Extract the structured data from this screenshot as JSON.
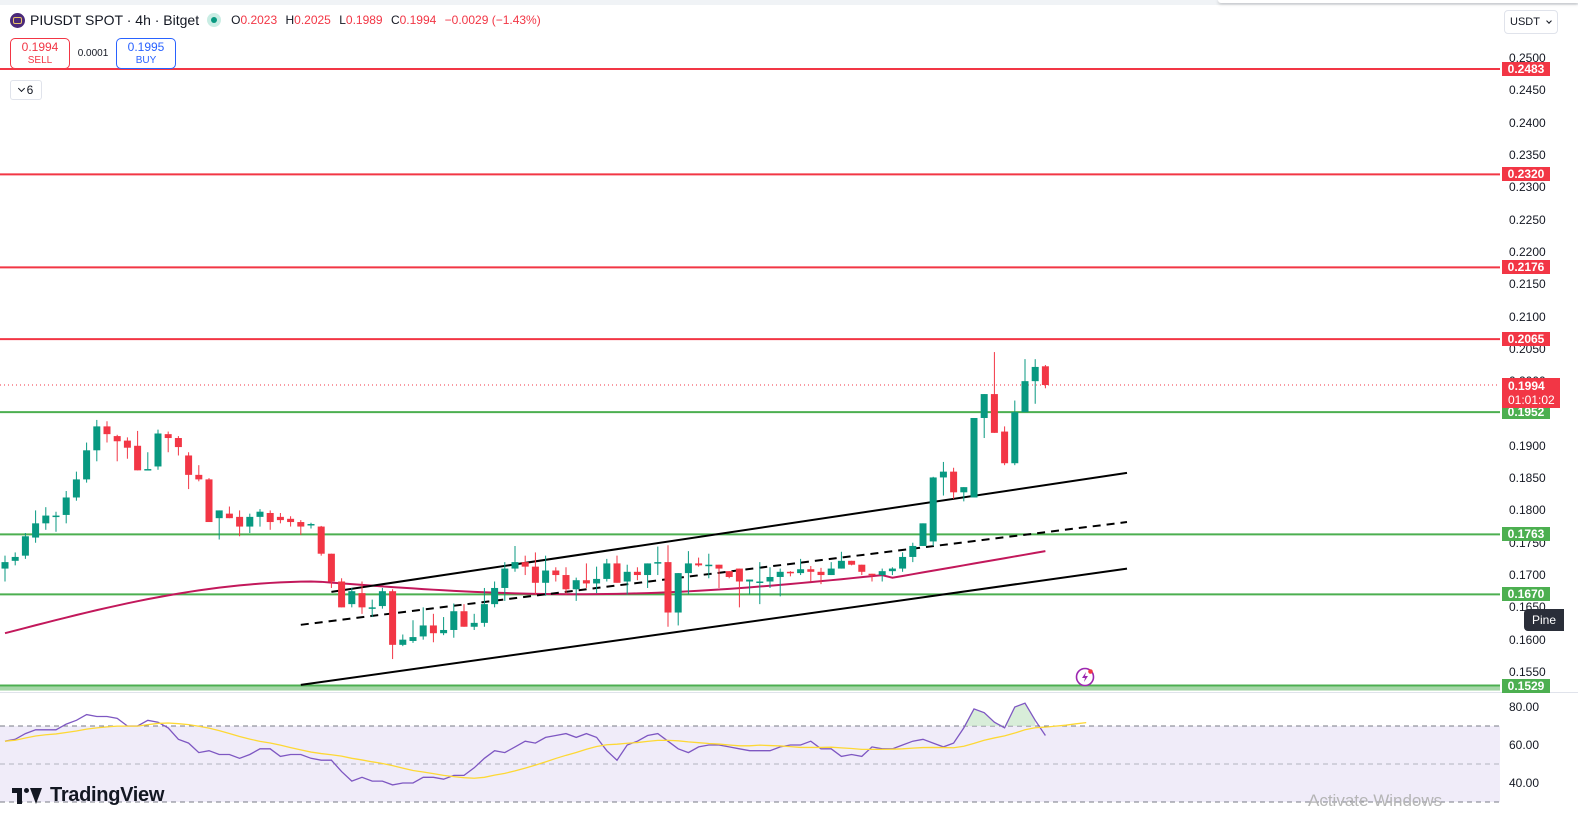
{
  "header": {
    "symbol": "PIUSDT SPOT · 4h · Bitget",
    "ohlc": {
      "o_label": "O",
      "o": "0.2023",
      "h_label": "H",
      "h": "0.2025",
      "l_label": "L",
      "l": "0.1989",
      "c_label": "C",
      "c": "0.1994",
      "change": "−0.0029 (−1.43%)"
    }
  },
  "trade": {
    "sell_price": "0.1994",
    "sell_label": "SELL",
    "spread": "0.0001",
    "buy_price": "0.1995",
    "buy_label": "BUY"
  },
  "indicators_toggle": {
    "count": "6"
  },
  "currency": {
    "selected": "USDT"
  },
  "price_axis": {
    "labels": [
      "0.2500",
      "0.2450",
      "0.2400",
      "0.2350",
      "0.2300",
      "0.2250",
      "0.2200",
      "0.2150",
      "0.2100",
      "0.2050",
      "0.2000",
      "0.1900",
      "0.1850",
      "0.1800",
      "0.1750",
      "0.1700",
      "0.1650",
      "0.1600",
      "0.1550"
    ]
  },
  "levels": {
    "resistance": [
      {
        "price": "0.2483",
        "color": "#f23645"
      },
      {
        "price": "0.2320",
        "color": "#f23645"
      },
      {
        "price": "0.2176",
        "color": "#f23645"
      },
      {
        "price": "0.2065",
        "color": "#f23645"
      }
    ],
    "support": [
      {
        "price": "0.1952",
        "color": "#4caf50"
      },
      {
        "price": "0.1763",
        "color": "#4caf50"
      },
      {
        "price": "0.1670",
        "color": "#4caf50"
      },
      {
        "price": "0.1529",
        "color": "#4caf50"
      }
    ]
  },
  "current_price": {
    "price": "0.1994",
    "countdown": "01:01:02"
  },
  "rsi_axis": {
    "labels": [
      "80.00",
      "60.00",
      "40.00"
    ]
  },
  "tooltip": {
    "pine": "Pine"
  },
  "branding": {
    "logo_text": "TradingView"
  },
  "watermark": {
    "text": "Activate Windows"
  },
  "colors": {
    "up": "#089981",
    "down": "#f23645",
    "ma": "#c2185b",
    "rsi": "#7e57c2",
    "rsi_ma": "#fdd835",
    "rsi_band": "#f0ecf9"
  },
  "chart_data": {
    "type": "candlestick",
    "title": "PIUSDT SPOT · 4h · Bitget",
    "ylim": [
      0.1529,
      0.25
    ],
    "candles": [
      [
        0.171,
        0.173,
        0.169,
        0.172
      ],
      [
        0.1722,
        0.1735,
        0.1715,
        0.1728
      ],
      [
        0.173,
        0.1765,
        0.1725,
        0.176
      ],
      [
        0.1758,
        0.18,
        0.175,
        0.178
      ],
      [
        0.178,
        0.1805,
        0.177,
        0.1792
      ],
      [
        0.1792,
        0.1798,
        0.1767,
        0.1792
      ],
      [
        0.1793,
        0.183,
        0.178,
        0.182
      ],
      [
        0.182,
        0.186,
        0.1815,
        0.1848
      ],
      [
        0.1848,
        0.1905,
        0.1843,
        0.1893
      ],
      [
        0.1893,
        0.194,
        0.1876,
        0.193
      ],
      [
        0.193,
        0.1938,
        0.1905,
        0.1918
      ],
      [
        0.1915,
        0.1917,
        0.1876,
        0.1907
      ],
      [
        0.1908,
        0.1913,
        0.188,
        0.1897
      ],
      [
        0.19,
        0.1923,
        0.1867,
        0.1862
      ],
      [
        0.1862,
        0.189,
        0.187,
        0.1864
      ],
      [
        0.1868,
        0.1925,
        0.1863,
        0.1919
      ],
      [
        0.1918,
        0.1922,
        0.189,
        0.1912
      ],
      [
        0.1912,
        0.1915,
        0.1885,
        0.1898
      ],
      [
        0.1885,
        0.189,
        0.1833,
        0.1855
      ],
      [
        0.1855,
        0.187,
        0.1845,
        0.1848
      ],
      [
        0.1848,
        0.185,
        0.18,
        0.1782
      ],
      [
        0.1788,
        0.1795,
        0.1755,
        0.18
      ],
      [
        0.1795,
        0.1806,
        0.179,
        0.1788
      ],
      [
        0.179,
        0.18,
        0.176,
        0.1775
      ],
      [
        0.1775,
        0.1795,
        0.1765,
        0.179
      ],
      [
        0.179,
        0.1802,
        0.1775,
        0.1798
      ],
      [
        0.1796,
        0.18,
        0.177,
        0.1782
      ],
      [
        0.179,
        0.1796,
        0.178,
        0.1785
      ],
      [
        0.1787,
        0.1791,
        0.1775,
        0.1782
      ],
      [
        0.1782,
        0.1785,
        0.1762,
        0.1775
      ],
      [
        0.1778,
        0.1781,
        0.1772,
        0.1779
      ],
      [
        0.1775,
        0.1776,
        0.173,
        0.1733
      ],
      [
        0.1733,
        0.173,
        0.168,
        0.169
      ],
      [
        0.169,
        0.1695,
        0.165,
        0.165
      ],
      [
        0.1655,
        0.168,
        0.165,
        0.1675
      ],
      [
        0.1672,
        0.169,
        0.164,
        0.165
      ],
      [
        0.165,
        0.1662,
        0.1635,
        0.165
      ],
      [
        0.1652,
        0.168,
        0.1648,
        0.1675
      ],
      [
        0.1675,
        0.1678,
        0.157,
        0.1592
      ],
      [
        0.1592,
        0.1608,
        0.159,
        0.16
      ],
      [
        0.1598,
        0.163,
        0.1595,
        0.1604
      ],
      [
        0.1605,
        0.165,
        0.16,
        0.1622
      ],
      [
        0.1622,
        0.164,
        0.1596,
        0.161
      ],
      [
        0.161,
        0.1635,
        0.1607,
        0.1615
      ],
      [
        0.1615,
        0.1656,
        0.1603,
        0.1644
      ],
      [
        0.1644,
        0.1655,
        0.1625,
        0.162
      ],
      [
        0.162,
        0.164,
        0.1615,
        0.1626
      ],
      [
        0.1626,
        0.168,
        0.162,
        0.1655
      ],
      [
        0.1655,
        0.169,
        0.165,
        0.168
      ],
      [
        0.168,
        0.172,
        0.166,
        0.171
      ],
      [
        0.171,
        0.1745,
        0.1705,
        0.172
      ],
      [
        0.172,
        0.173,
        0.17,
        0.1713
      ],
      [
        0.1713,
        0.1735,
        0.167,
        0.1688
      ],
      [
        0.1688,
        0.173,
        0.1668,
        0.1707
      ],
      [
        0.1707,
        0.1712,
        0.169,
        0.17
      ],
      [
        0.17,
        0.1712,
        0.167,
        0.1678
      ],
      [
        0.1678,
        0.1696,
        0.166,
        0.1692
      ],
      [
        0.1692,
        0.1718,
        0.168,
        0.1687
      ],
      [
        0.1687,
        0.1713,
        0.1672,
        0.1694
      ],
      [
        0.1694,
        0.1725,
        0.169,
        0.1718
      ],
      [
        0.1718,
        0.173,
        0.1688,
        0.1688
      ],
      [
        0.169,
        0.1716,
        0.167,
        0.1705
      ],
      [
        0.1705,
        0.1712,
        0.1692,
        0.17
      ],
      [
        0.17,
        0.1718,
        0.168,
        0.1718
      ],
      [
        0.1718,
        0.1744,
        0.17,
        0.172
      ],
      [
        0.172,
        0.1746,
        0.162,
        0.1642
      ],
      [
        0.1642,
        0.1663,
        0.1622,
        0.1703
      ],
      [
        0.1703,
        0.1737,
        0.167,
        0.1718
      ],
      [
        0.1718,
        0.1727,
        0.1713,
        0.1715
      ],
      [
        0.1715,
        0.1733,
        0.1695,
        0.1716
      ],
      [
        0.1716,
        0.1708,
        0.168,
        0.171
      ],
      [
        0.1706,
        0.17,
        0.1695,
        0.1697
      ],
      [
        0.171,
        0.1705,
        0.165,
        0.169
      ],
      [
        0.169,
        0.1689,
        0.167,
        0.1693
      ],
      [
        0.169,
        0.172,
        0.1655,
        0.169
      ],
      [
        0.169,
        0.1712,
        0.168,
        0.1697
      ],
      [
        0.1697,
        0.171,
        0.1667,
        0.1705
      ],
      [
        0.1705,
        0.1706,
        0.1698,
        0.1703
      ],
      [
        0.1703,
        0.1725,
        0.17,
        0.1709
      ],
      [
        0.1709,
        0.1714,
        0.169,
        0.1705
      ],
      [
        0.1705,
        0.1711,
        0.1686,
        0.17
      ],
      [
        0.17,
        0.172,
        0.17,
        0.171
      ],
      [
        0.171,
        0.1736,
        0.1715,
        0.1722
      ],
      [
        0.1722,
        0.172,
        0.1715,
        0.1716
      ],
      [
        0.1716,
        0.1714,
        0.17,
        0.1705
      ],
      [
        0.1702,
        0.17,
        0.169,
        0.17
      ],
      [
        0.17,
        0.171,
        0.169,
        0.1706
      ],
      [
        0.1706,
        0.1712,
        0.17,
        0.171
      ],
      [
        0.171,
        0.1735,
        0.1705,
        0.1728
      ],
      [
        0.1728,
        0.175,
        0.172,
        0.1745
      ],
      [
        0.1745,
        0.1762,
        0.175,
        0.178
      ],
      [
        0.1752,
        0.1852,
        0.1745,
        0.1851
      ],
      [
        0.1851,
        0.1875,
        0.1823,
        0.186
      ],
      [
        0.186,
        0.1866,
        0.1818,
        0.1828
      ],
      [
        0.1828,
        0.1836,
        0.1814,
        0.1836
      ],
      [
        0.182,
        0.194,
        0.182,
        0.1943
      ],
      [
        0.1943,
        0.1968,
        0.1912,
        0.198
      ],
      [
        0.198,
        0.2045,
        0.1955,
        0.192
      ],
      [
        0.1922,
        0.193,
        0.187,
        0.1873
      ],
      [
        0.1873,
        0.197,
        0.187,
        0.1952
      ],
      [
        0.1952,
        0.2034,
        0.1952,
        0.2
      ],
      [
        0.2,
        0.2034,
        0.1965,
        0.2022
      ],
      [
        0.2023,
        0.2025,
        0.1989,
        0.1994
      ]
    ],
    "moving_average": "pink MA line rising from ~0.1610 to ~0.1737",
    "channel": {
      "upper": [
        [
          0.1674,
          32
        ],
        [
          0.1858,
          110
        ]
      ],
      "lower": [
        [
          0.153,
          29
        ],
        [
          0.171,
          110
        ]
      ],
      "mid_dashed": [
        [
          0.1623,
          29
        ],
        [
          0.1782,
          110
        ]
      ]
    },
    "rsi": {
      "levels": [
        70,
        50,
        30
      ],
      "ylim_labels": [
        80,
        60,
        40
      ]
    }
  }
}
